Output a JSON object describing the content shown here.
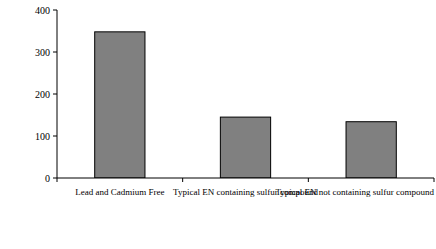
{
  "chart_data": {
    "type": "bar",
    "categories": [
      "Lead and Cadmium Free",
      "Typical EN containing sulfur compound",
      "Typical EN not containing sulfur compound"
    ],
    "values": [
      348,
      145,
      134
    ],
    "color": "#808080",
    "ylim": [
      0,
      400
    ],
    "yticks": [
      0,
      100,
      200,
      300,
      400
    ],
    "grid": false
  }
}
